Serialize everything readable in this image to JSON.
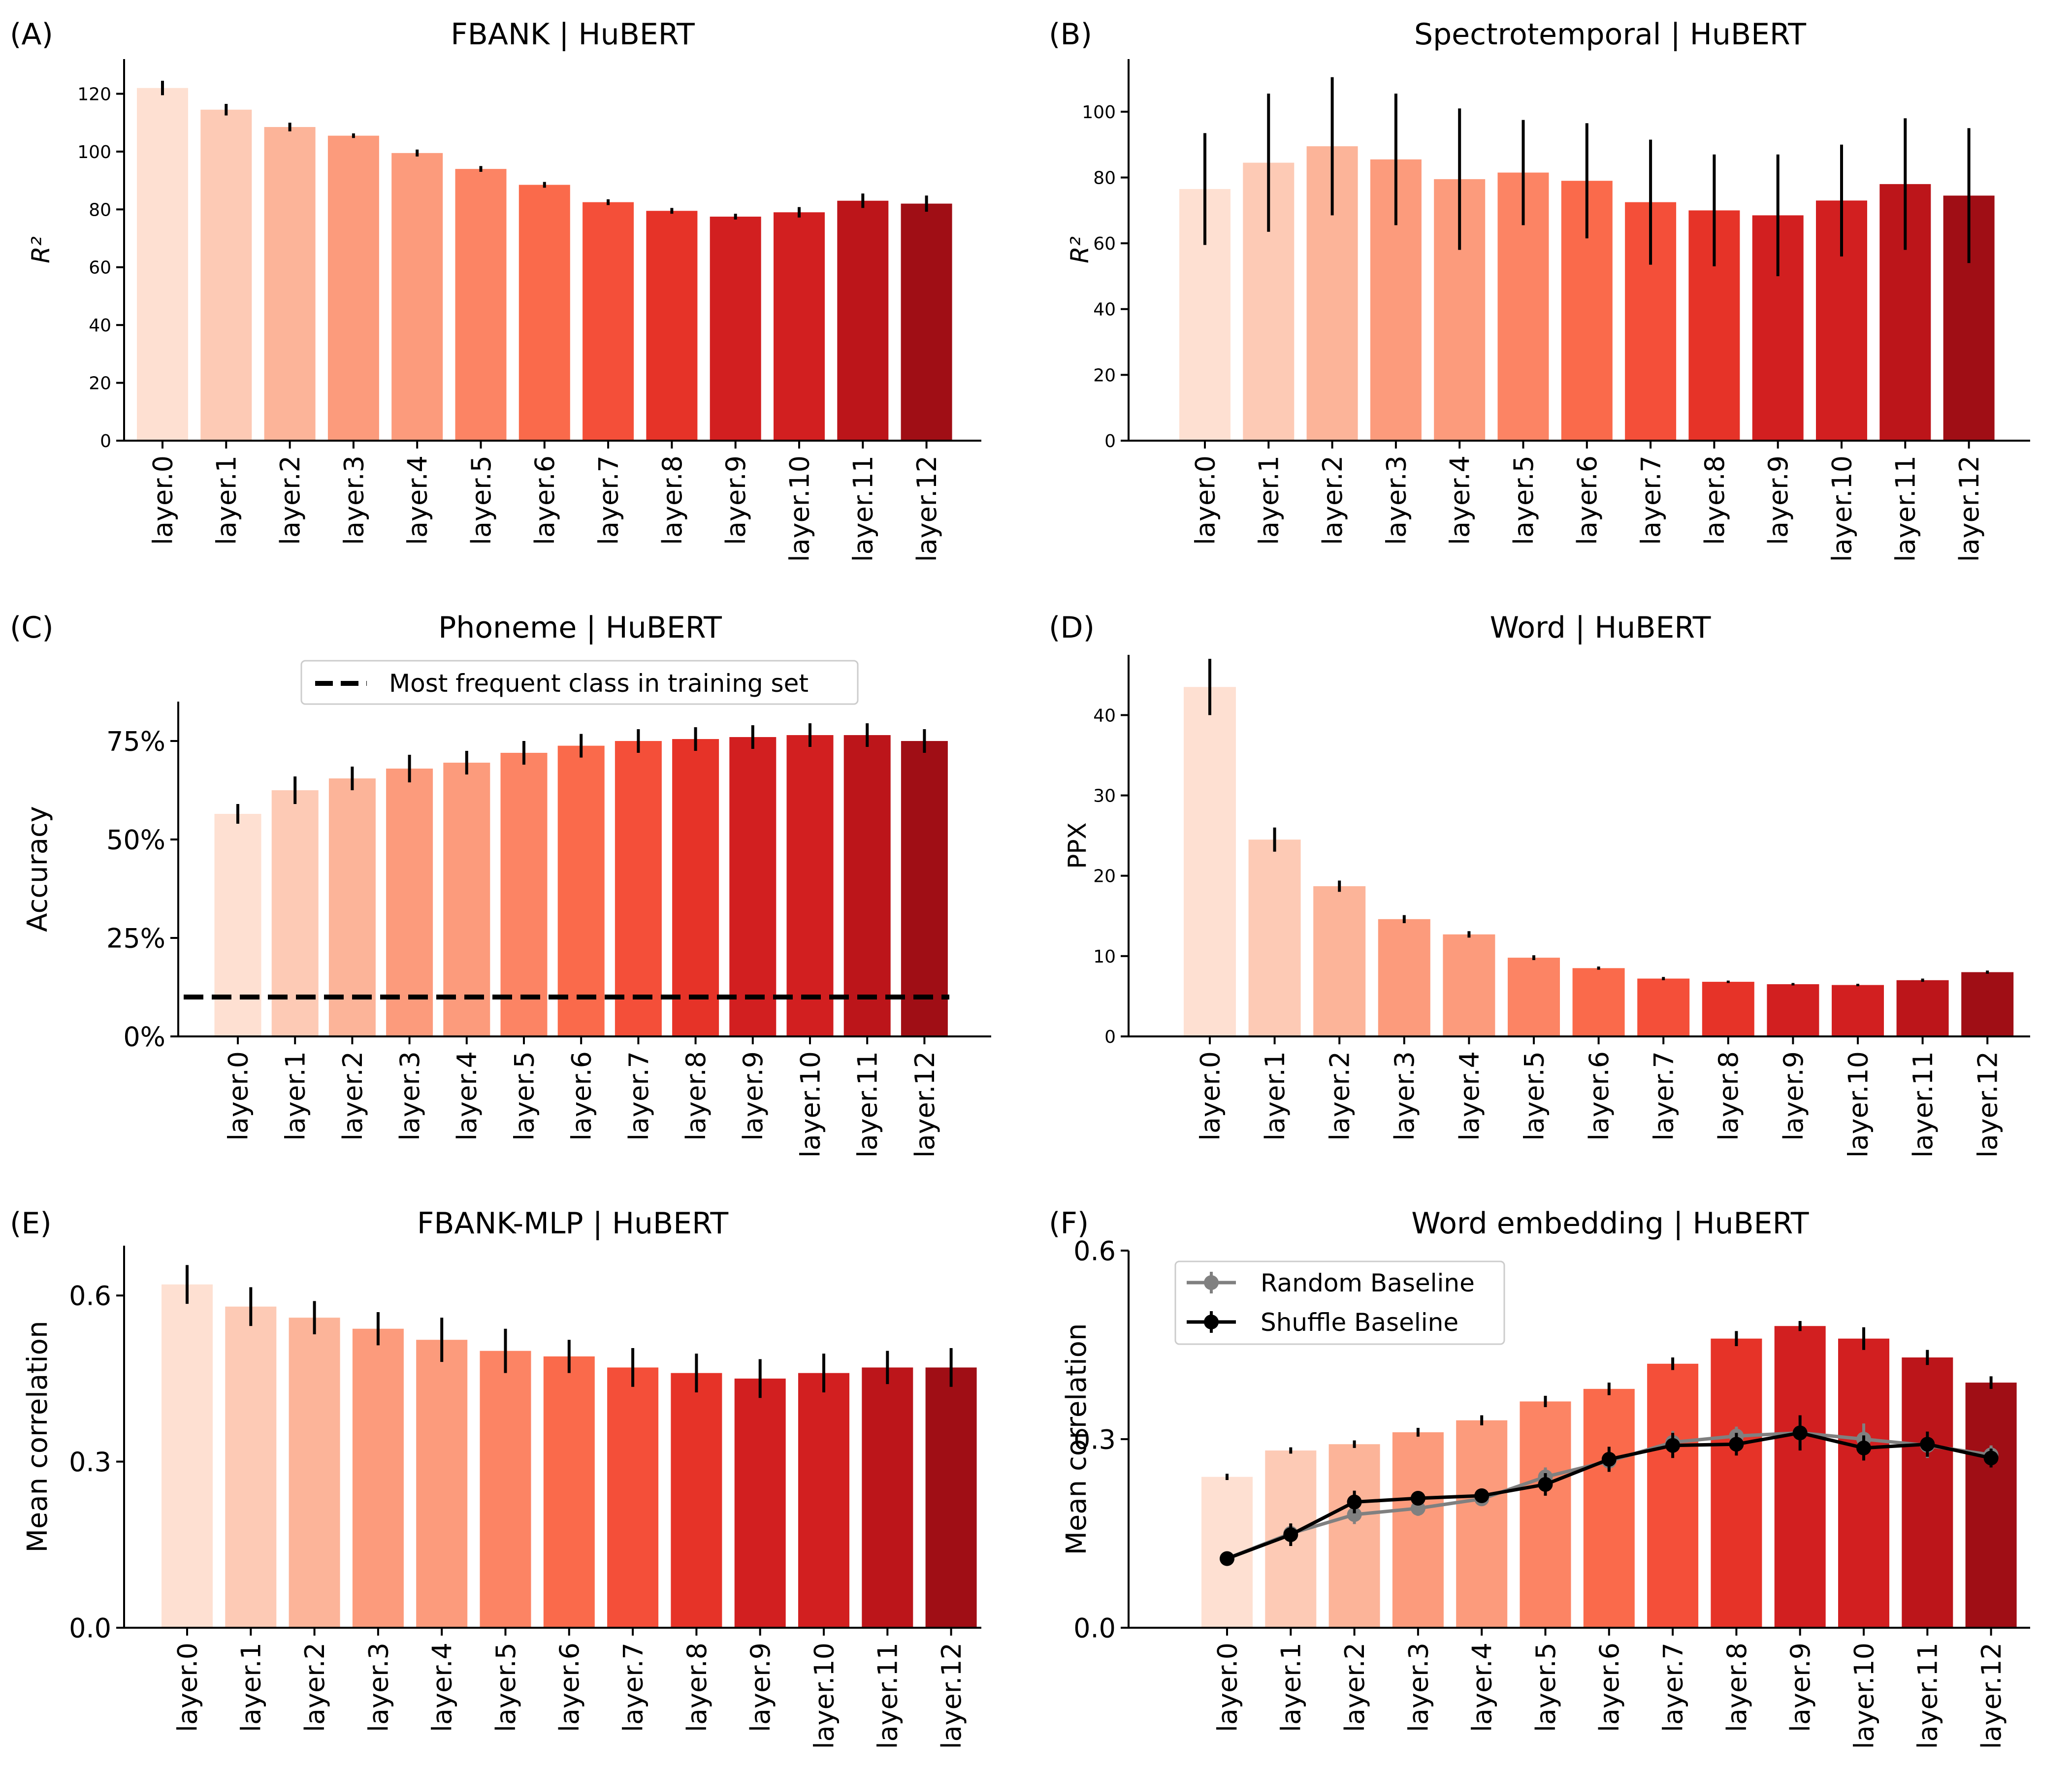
{
  "colors": [
    "#fee0d2",
    "#fdcab5",
    "#fcb499",
    "#fc9b7c",
    "#fc8464",
    "#fa6a4b",
    "#f44f39",
    "#e63328",
    "#d21f20",
    "#bc151a",
    "#a00e15"
  ],
  "chart_data": [
    {
      "panel_label": "(A)",
      "type": "bar",
      "title": "FBANK | HuBERT",
      "ylabel": "R²",
      "ylim": [
        0,
        132
      ],
      "yticks": [
        0,
        20,
        40,
        60,
        80,
        100,
        120
      ],
      "ytick_labels": [
        "0",
        "20",
        "40",
        "60",
        "80",
        "100",
        "120"
      ],
      "categories": [
        "layer.0",
        "layer.1",
        "layer.2",
        "layer.3",
        "layer.4",
        "layer.5",
        "layer.6",
        "layer.7",
        "layer.8",
        "layer.9",
        "layer.10",
        "layer.11",
        "layer.12"
      ],
      "values": [
        122,
        114.5,
        108.5,
        105.5,
        99.5,
        94,
        88.5,
        82.5,
        79.5,
        77.5,
        79,
        83,
        82
      ],
      "errors": [
        2.5,
        2,
        1.5,
        0.8,
        1.2,
        1,
        1,
        1,
        1,
        1,
        1.8,
        2.5,
        2.8
      ]
    },
    {
      "panel_label": "(B)",
      "type": "bar",
      "title": "Spectrotemporal | HuBERT",
      "ylabel": "R²",
      "ylim": [
        0,
        116
      ],
      "yticks": [
        0,
        20,
        40,
        60,
        80,
        100
      ],
      "ytick_labels": [
        "0",
        "20",
        "40",
        "60",
        "80",
        "100"
      ],
      "categories": [
        "layer.0",
        "layer.1",
        "layer.2",
        "layer.3",
        "layer.4",
        "layer.5",
        "layer.6",
        "layer.7",
        "layer.8",
        "layer.9",
        "layer.10",
        "layer.11",
        "layer.12"
      ],
      "values": [
        76.5,
        84.5,
        89.5,
        85.5,
        79.5,
        81.5,
        79,
        72.5,
        70,
        68.5,
        73,
        78,
        74.5
      ],
      "errors": [
        17,
        21,
        21,
        20,
        21.5,
        16,
        17.5,
        19,
        17,
        18.5,
        17,
        20,
        20.5
      ]
    },
    {
      "panel_label": "(C)",
      "type": "bar",
      "title": "Phoneme | HuBERT",
      "ylabel": "Accuracy",
      "ylim": [
        0,
        0.85
      ],
      "yticks": [
        0,
        0.25,
        0.5,
        0.75
      ],
      "ytick_labels": [
        "0%",
        "25%",
        "50%",
        "75%"
      ],
      "categories": [
        "layer.0",
        "layer.1",
        "layer.2",
        "layer.3",
        "layer.4",
        "layer.5",
        "layer.6",
        "layer.7",
        "layer.8",
        "layer.9",
        "layer.10",
        "layer.11",
        "layer.12"
      ],
      "values": [
        0.565,
        0.625,
        0.655,
        0.68,
        0.695,
        0.72,
        0.738,
        0.75,
        0.755,
        0.76,
        0.765,
        0.765,
        0.75
      ],
      "errors": [
        0.025,
        0.035,
        0.03,
        0.035,
        0.03,
        0.03,
        0.03,
        0.03,
        0.03,
        0.03,
        0.03,
        0.03,
        0.03
      ],
      "baseline": {
        "value": 0.1,
        "label": "Most frequent class in training set"
      }
    },
    {
      "panel_label": "(D)",
      "type": "bar",
      "title": "Word | HuBERT",
      "ylabel": "PPX",
      "ylim": [
        0,
        47.5
      ],
      "yticks": [
        0,
        10,
        20,
        30,
        40
      ],
      "ytick_labels": [
        "0",
        "10",
        "20",
        "30",
        "40"
      ],
      "categories": [
        "layer.0",
        "layer.1",
        "layer.2",
        "layer.3",
        "layer.4",
        "layer.5",
        "layer.6",
        "layer.7",
        "layer.8",
        "layer.9",
        "layer.10",
        "layer.11",
        "layer.12"
      ],
      "values": [
        43.5,
        24.5,
        18.7,
        14.6,
        12.7,
        9.8,
        8.5,
        7.2,
        6.8,
        6.5,
        6.4,
        7.0,
        8.0
      ],
      "errors": [
        3.5,
        1.5,
        0.7,
        0.5,
        0.4,
        0.3,
        0.2,
        0.2,
        0.15,
        0.15,
        0.15,
        0.2,
        0.2
      ]
    },
    {
      "panel_label": "(E)",
      "type": "bar",
      "title": "FBANK-MLP | HuBERT",
      "ylabel": "Mean correlation",
      "ylim": [
        0,
        0.69
      ],
      "yticks": [
        0,
        0.3,
        0.6
      ],
      "ytick_labels": [
        "0.0",
        "0.3",
        "0.6"
      ],
      "categories": [
        "layer.0",
        "layer.1",
        "layer.2",
        "layer.3",
        "layer.4",
        "layer.5",
        "layer.6",
        "layer.7",
        "layer.8",
        "layer.9",
        "layer.10",
        "layer.11",
        "layer.12"
      ],
      "values": [
        0.62,
        0.58,
        0.56,
        0.54,
        0.52,
        0.5,
        0.49,
        0.47,
        0.46,
        0.45,
        0.46,
        0.47,
        0.47
      ],
      "errors": [
        0.035,
        0.035,
        0.03,
        0.03,
        0.04,
        0.04,
        0.03,
        0.035,
        0.035,
        0.035,
        0.035,
        0.03,
        0.035
      ]
    },
    {
      "panel_label": "(F)",
      "type": "bar",
      "title": "Word embedding | HuBERT",
      "ylabel": "Mean correlation",
      "ylim": [
        0,
        0.6
      ],
      "yticks": [
        0,
        0.3,
        0.6
      ],
      "ytick_labels": [
        "0.0",
        "0.3",
        "0.6"
      ],
      "categories": [
        "layer.0",
        "layer.1",
        "layer.2",
        "layer.3",
        "layer.4",
        "layer.5",
        "layer.6",
        "layer.7",
        "layer.8",
        "layer.9",
        "layer.10",
        "layer.11",
        "layer.12"
      ],
      "values": [
        0.24,
        0.282,
        0.292,
        0.311,
        0.33,
        0.36,
        0.38,
        0.42,
        0.46,
        0.48,
        0.46,
        0.43,
        0.39
      ],
      "errors": [
        0.005,
        0.005,
        0.006,
        0.007,
        0.008,
        0.009,
        0.01,
        0.01,
        0.012,
        0.008,
        0.018,
        0.012,
        0.01
      ],
      "lines": [
        {
          "name": "Random Baseline",
          "color": "#808080",
          "values": [
            0.11,
            0.15,
            0.18,
            0.19,
            0.205,
            0.24,
            0.265,
            0.295,
            0.305,
            0.31,
            0.3,
            0.29,
            0.275
          ],
          "errors": [
            0.005,
            0.015,
            0.015,
            0.012,
            0.01,
            0.015,
            0.015,
            0.018,
            0.015,
            0.02,
            0.025,
            0.02,
            0.015
          ]
        },
        {
          "name": "Shuffle Baseline",
          "color": "#000000",
          "values": [
            0.11,
            0.148,
            0.2,
            0.206,
            0.21,
            0.228,
            0.268,
            0.29,
            0.292,
            0.31,
            0.286,
            0.292,
            0.27
          ],
          "errors": [
            0.005,
            0.018,
            0.018,
            0.01,
            0.01,
            0.018,
            0.02,
            0.02,
            0.018,
            0.028,
            0.02,
            0.02,
            0.015
          ]
        }
      ]
    }
  ]
}
